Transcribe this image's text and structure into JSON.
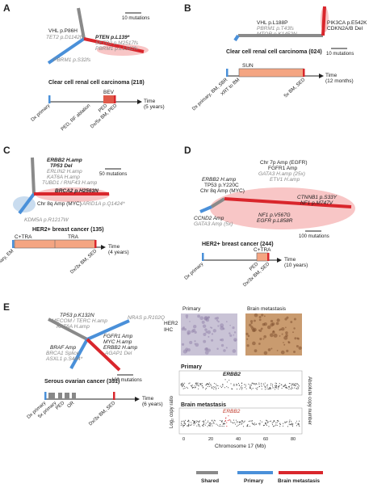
{
  "colors": {
    "shared": "#8a8a8a",
    "primary": "#4a90d9",
    "brain": "#d9262c",
    "bar": "#f4a582",
    "halo": "#f8c6c6",
    "bev": "#e05a4a"
  },
  "panelA": {
    "letter": "A",
    "scale": "10 mutations",
    "muts": [
      "VHL p.P86H",
      "TET2 p.D1142fs",
      "PBRM1 p.S32fs",
      "PTEN p.L139*",
      "SETD2 p.M2517fs",
      "PBRM1 p.L1342fs"
    ],
    "title": "Clear cell renal cell carcinoma (218)",
    "timeline": {
      "tag": "BEV",
      "labels": [
        "Dx primary",
        "PED, RF ablation",
        "PED",
        "Dx/5x BM, PED"
      ],
      "time": "Time",
      "unit": "(5 years)"
    }
  },
  "panelB": {
    "letter": "B",
    "muts": [
      "VHL p.L188P",
      "PBRM1 p.T43fs",
      "MTOR p.K1452N",
      "PIK3CA p.E542K",
      "CDKN2A/B Del"
    ],
    "scale": "10 mutations",
    "title": "Clear cell renal cell carcinoma (024)",
    "timeline": {
      "tag": "SUN",
      "labels": [
        "Dx primary, BM, SBR",
        "XRT to BM",
        "5x BM, SED"
      ],
      "time": "Time",
      "unit": "(12 months)"
    }
  },
  "panelC": {
    "letter": "C",
    "muts": [
      "ERBB2 H.amp",
      "TP53 Del",
      "ERLIN2 H.amp",
      "KAT6A H.amp",
      "TUBD1 / RNF43 H.amp",
      "BRCA2 p.H2563N",
      "Chr 8q Amp (MYC)",
      "ARID1A p.Q1424*",
      "KDM5A p.R1217W"
    ],
    "scale": "50 mutations",
    "title": "HER2+ breast cancer (135)",
    "timeline": {
      "tags": [
        "C+TRA",
        "TRA"
      ],
      "labels": [
        "Dx primary, EM",
        "Dx/3x BM, SED"
      ],
      "time": "Time",
      "unit": "(4 years)"
    }
  },
  "panelD": {
    "letter": "D",
    "muts": [
      "Chr 7p Amp (EGFR)",
      "FGFR1 Amp",
      "GATA3 H.amp (25x)",
      "ETV1 H.amp",
      "ERBB2 H.amp",
      "TP53 p.Y220C",
      "Chr 8q Amp (MYC)",
      "CCND2 Amp",
      "GATA3 Amp (5x)",
      "CTNNB1 p.S33Y",
      "NF1 p.M747V",
      "NF1 p.V567G",
      "EGFR p.L858R"
    ],
    "scale": "100 mutations",
    "title": "HER2+ breast cancer (244)",
    "timeline": {
      "tag": "C+TRA",
      "labels": [
        "Dx primary",
        "PED",
        "Dx/3x BM, SED"
      ],
      "time": "Time",
      "unit": "(10 years)"
    }
  },
  "panelE": {
    "letter": "E",
    "muts": [
      "TP53 p.K132N",
      "MECOM / TERC H.amp",
      "KAT6A H.amp",
      "NRAS p.R102Q",
      "BRAF Amp",
      "BRCA1 Splice",
      "ASXL1 p.S444*",
      "FGFR1 Amp",
      "MYC H.amp",
      "ERBB2 H.amp",
      "AGAP1 Del"
    ],
    "scale": "100 mutations",
    "title": "Serous ovarian cancer (331)",
    "timeline": {
      "labels": [
        "Dx primary",
        "5x primary",
        "PED",
        "OR",
        "Dx/3x BM, SED"
      ],
      "time": "Time",
      "unit": "(6 years)"
    },
    "ihc": {
      "primary": "Primary",
      "brain": "Brain metastasis",
      "label1": "HER2",
      "label2": "IHC"
    },
    "cnv": {
      "primary": "Primary",
      "brain": "Brain metastasis",
      "gene": "ERBB2",
      "ylabel": "Log₂ copy ratio",
      "ylabel2": "Absolute copy number",
      "xlabel": "Chromosome 17 (Mb)",
      "xticks": [
        "0",
        "20",
        "40",
        "60",
        "80"
      ]
    }
  },
  "legend": {
    "shared": "Shared",
    "primary": "Primary",
    "brain": "Brain metastasis"
  }
}
